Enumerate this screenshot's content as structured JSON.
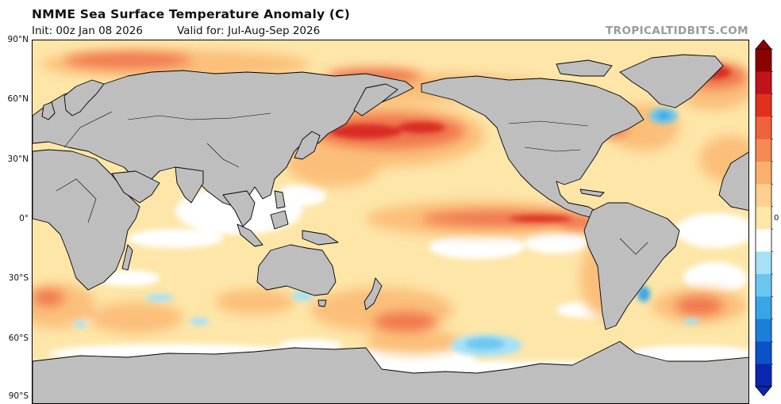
{
  "header": {
    "title": "NMME Sea Surface Temperature Anomaly (C)",
    "init": "Init: 00z Jan 08 2026",
    "valid": "Valid for: Jul-Aug-Sep 2026",
    "brand": "TROPICALTIDBITS.COM"
  },
  "map": {
    "variable": "Sea Surface Temperature Anomaly",
    "units": "C",
    "projection": "equirectangular, Pacific-centered",
    "lat_ticks": [
      "90°N",
      "60°N",
      "30°N",
      "0°",
      "30°S",
      "60°S",
      "90°S"
    ],
    "colors": {
      "land": "#bebebe",
      "ocean_neutral": "#ffffff",
      "warm_light": "#fde6a8",
      "warm_mid": "#fbbf7a",
      "warm_strong": "#f0764e",
      "warm_max": "#d92a22",
      "cool_light": "#a6e1f5",
      "cool_mid": "#4ab4eb",
      "coastline": "#000000"
    },
    "features": {
      "warm_north_pacific_blob": "strong warm anomaly near 40°N across the North Pacific",
      "warm_equatorial_pacific": "warm tongue along the equator in the eastern Pacific",
      "cool_patches": "small cool anomalies south of Greenland, near 60°S in the Pacific, off Argentina"
    }
  },
  "colorbar": {
    "visible_tick": "0",
    "orientation": "vertical",
    "palette_top_to_bottom": [
      "#8b0000",
      "#c0141a",
      "#e3301e",
      "#f0623c",
      "#f58a55",
      "#f9b06e",
      "#fcd08f",
      "#fde6a8",
      "#ffffff",
      "#a6e1f5",
      "#6cc7f0",
      "#37a6e6",
      "#1b7fd8",
      "#0b52c7",
      "#0a25b0"
    ]
  }
}
